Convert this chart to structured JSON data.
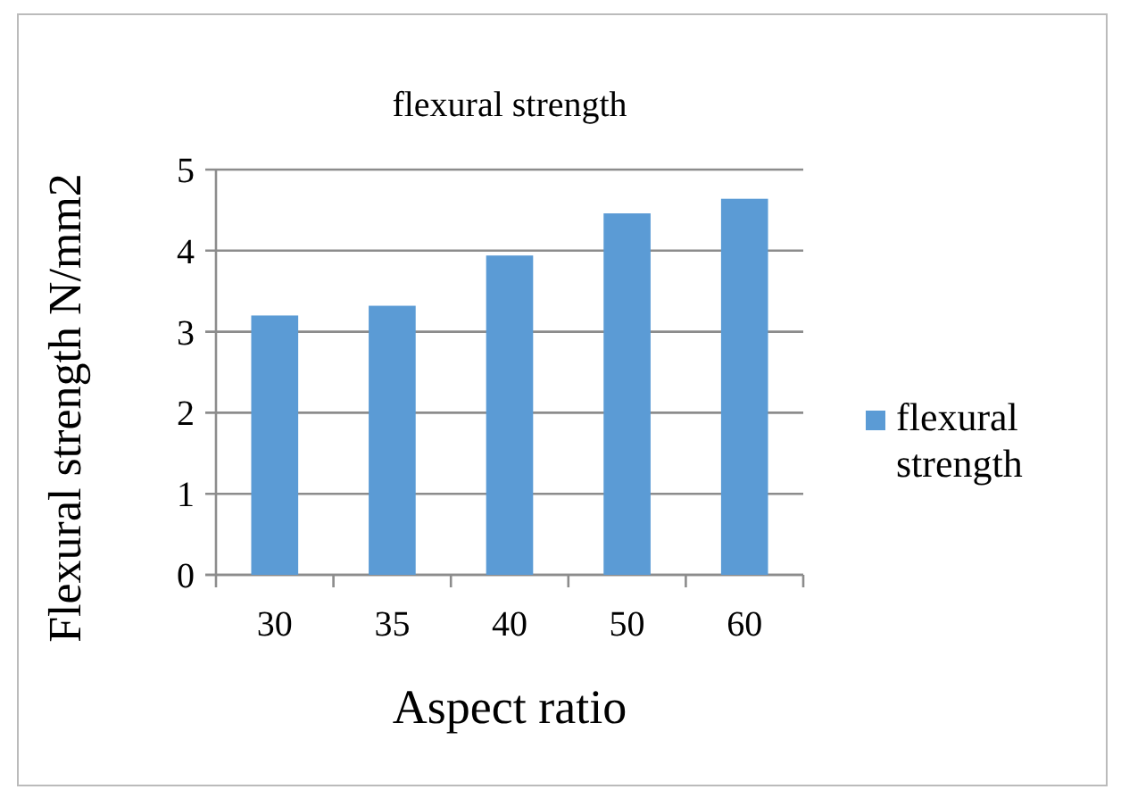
{
  "chart_data": {
    "type": "bar",
    "title": "flexural strength",
    "xlabel": "Aspect ratio",
    "ylabel": "Flexural strength N/mm2",
    "categories": [
      "30",
      "35",
      "40",
      "50",
      "60"
    ],
    "series": [
      {
        "name": "flexural strength",
        "color": "#5b9bd5",
        "values": [
          3.2,
          3.32,
          3.94,
          4.46,
          4.64
        ]
      }
    ],
    "ylim": [
      0,
      5
    ],
    "yticks": [
      0,
      1,
      2,
      3,
      4,
      5
    ],
    "grid": "y",
    "legend": "right"
  }
}
